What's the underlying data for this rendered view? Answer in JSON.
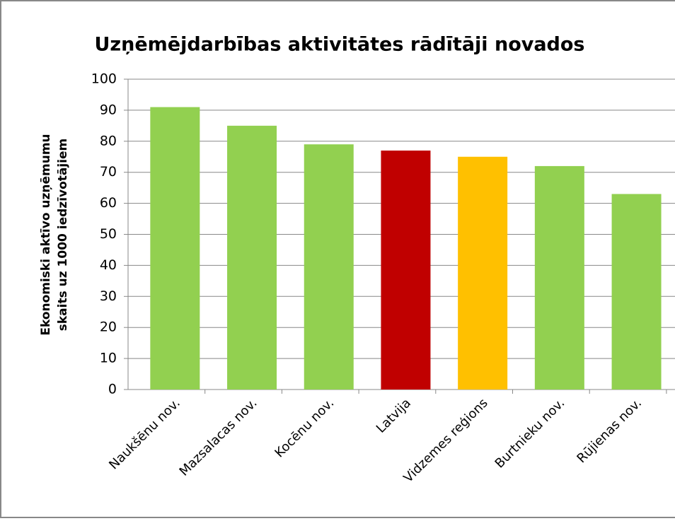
{
  "chart_data": {
    "type": "bar",
    "title": "Uzņēmējdarbības aktivitātes rādītāji novados",
    "ylabel": [
      "Ekonomiski aktīvo uzņēmumu",
      "skaits uz 1000 iedzīvotājiem"
    ],
    "categories": [
      "Naukšēnu nov.",
      "Mazsalacas nov.",
      "Kocēnu nov.",
      "Latvija",
      "Vidzemes reģions",
      "Burtnieku nov.",
      "Rūjienas nov."
    ],
    "values": [
      91,
      85,
      79,
      77,
      75,
      72,
      63
    ],
    "colors": [
      "#92d050",
      "#92d050",
      "#92d050",
      "#c00000",
      "#ffc000",
      "#92d050",
      "#92d050"
    ],
    "ylim": [
      0,
      100
    ],
    "yticks": [
      0,
      10,
      20,
      30,
      40,
      50,
      60,
      70,
      80,
      90,
      100
    ],
    "grid": true
  }
}
